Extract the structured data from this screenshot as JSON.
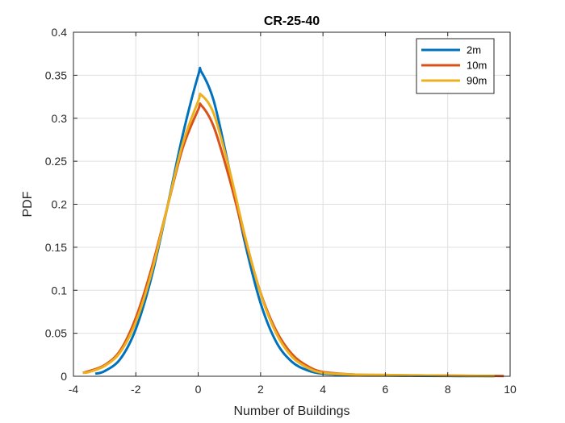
{
  "chart_data": {
    "type": "line",
    "title": "CR-25-40",
    "xlabel": "Number of Buildings",
    "ylabel": "PDF",
    "xlim": [
      -4,
      10
    ],
    "ylim": [
      0,
      0.4
    ],
    "xticks": [
      -4,
      -2,
      0,
      2,
      4,
      6,
      8,
      10
    ],
    "xtick_labels": [
      "-4",
      "-2",
      "0",
      "2",
      "4",
      "6",
      "8",
      "10"
    ],
    "yticks": [
      0,
      0.05,
      0.1,
      0.15,
      0.2,
      0.25,
      0.3,
      0.35,
      0.4
    ],
    "ytick_labels": [
      "0",
      "0.05",
      "0.1",
      "0.15",
      "0.2",
      "0.25",
      "0.3",
      "0.35",
      "0.4"
    ],
    "grid": true,
    "legend_position": "top-right",
    "series": [
      {
        "name": "2m",
        "color": "#0072BD",
        "x": [
          -3.3,
          -3.0,
          -2.5,
          -2.0,
          -1.5,
          -1.0,
          -0.5,
          0.0,
          0.1,
          0.5,
          1.0,
          1.5,
          2.0,
          2.5,
          3.0,
          3.5,
          4.0,
          5.0,
          6.0,
          7.0,
          8.0,
          9.0,
          9.5
        ],
        "y": [
          0.003,
          0.006,
          0.02,
          0.055,
          0.115,
          0.195,
          0.28,
          0.35,
          0.354,
          0.32,
          0.24,
          0.155,
          0.085,
          0.04,
          0.017,
          0.007,
          0.003,
          0.001,
          0.0008,
          0.0005,
          0.0003,
          0.0002,
          0.0001
        ]
      },
      {
        "name": "10m",
        "color": "#D95319",
        "x": [
          -3.7,
          -3.5,
          -3.0,
          -2.5,
          -2.0,
          -1.5,
          -1.0,
          -0.5,
          0.0,
          0.1,
          0.5,
          1.0,
          1.5,
          2.0,
          2.5,
          3.0,
          3.5,
          4.0,
          5.0,
          6.0,
          7.0,
          8.0,
          9.0,
          9.8
        ],
        "y": [
          0.004,
          0.006,
          0.013,
          0.03,
          0.068,
          0.125,
          0.195,
          0.265,
          0.31,
          0.315,
          0.29,
          0.23,
          0.16,
          0.097,
          0.053,
          0.026,
          0.012,
          0.005,
          0.002,
          0.0015,
          0.001,
          0.0008,
          0.0005,
          0.0002
        ]
      },
      {
        "name": "90m",
        "color": "#EDB120",
        "x": [
          -3.7,
          -3.5,
          -3.0,
          -2.5,
          -2.0,
          -1.5,
          -1.0,
          -0.5,
          0.0,
          0.1,
          0.5,
          1.0,
          1.5,
          2.0,
          2.5,
          3.0,
          3.5,
          4.0,
          5.0,
          6.0,
          7.0,
          8.0,
          9.0,
          9.5
        ],
        "y": [
          0.004,
          0.005,
          0.012,
          0.028,
          0.063,
          0.12,
          0.195,
          0.27,
          0.32,
          0.327,
          0.305,
          0.24,
          0.163,
          0.096,
          0.05,
          0.023,
          0.01,
          0.004,
          0.002,
          0.0015,
          0.001,
          0.0007,
          0.0004,
          0.0002
        ]
      }
    ]
  }
}
